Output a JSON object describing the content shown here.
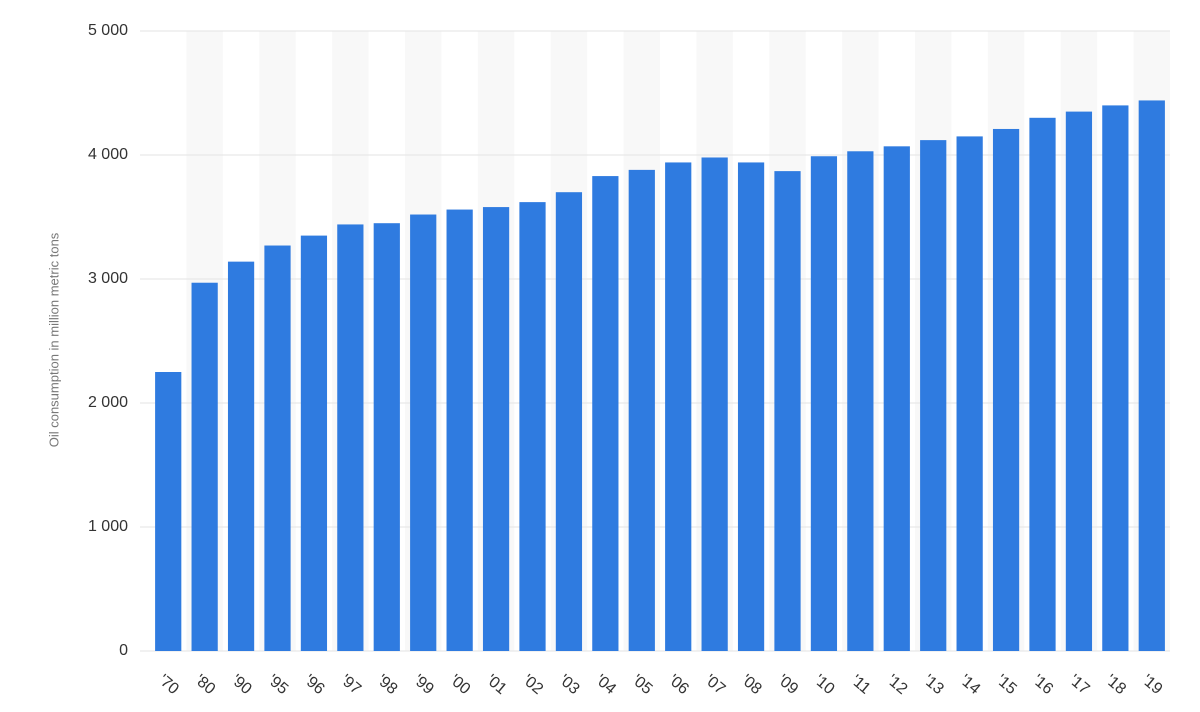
{
  "chart_data": {
    "type": "bar",
    "y_label": "Oil consumption in million metric tons",
    "categories": [
      "'70",
      "'80",
      "'90",
      "'95",
      "'96",
      "'97",
      "'98",
      "'99",
      "'00",
      "'01",
      "'02",
      "'03",
      "'04",
      "'05",
      "'06",
      "'07",
      "'08",
      "'09",
      "'10",
      "'11",
      "'12",
      "'13",
      "'14",
      "'15",
      "'16",
      "'17",
      "'18",
      "'19"
    ],
    "values": [
      2250,
      2970,
      3140,
      3270,
      3350,
      3440,
      3450,
      3520,
      3560,
      3580,
      3620,
      3700,
      3830,
      3880,
      3940,
      3980,
      3940,
      3870,
      3990,
      4030,
      4070,
      4120,
      4150,
      4210,
      4300,
      4350,
      4400,
      4440
    ],
    "color": "#2f7be0",
    "ylim": [
      0,
      5000
    ],
    "yticks": [
      0,
      {
        "value": 1000,
        "label": "1 000"
      },
      {
        "value": 2000,
        "label": "2 000"
      },
      {
        "value": 3000,
        "label": "3 000"
      },
      {
        "value": 4000,
        "label": "4 000"
      },
      {
        "value": 5000,
        "label": "5 000"
      }
    ],
    "grid": true
  }
}
